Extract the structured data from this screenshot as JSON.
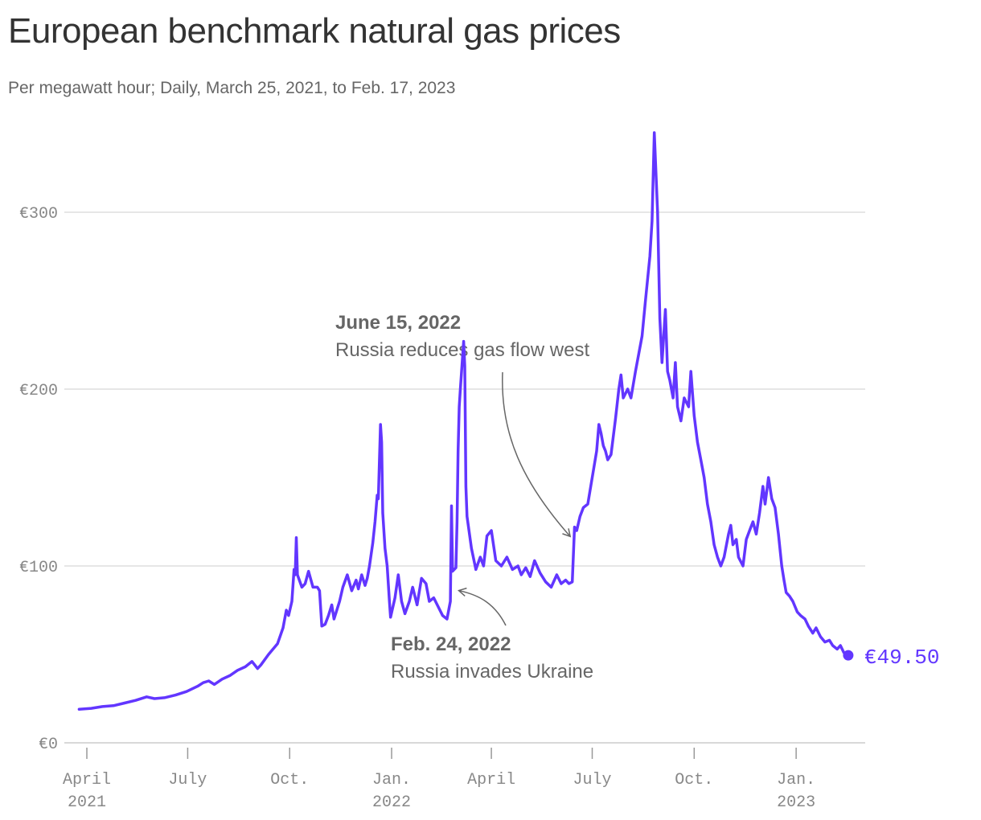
{
  "title": "European benchmark natural gas prices",
  "subtitle": "Per megawatt hour; Daily, March 25, 2021, to Feb. 17, 2023",
  "colors": {
    "series": "#6236ff",
    "grid": "#dddddd",
    "text": "#666666"
  },
  "chart_data": {
    "type": "line",
    "title": "European benchmark natural gas prices",
    "subtitle": "Per megawatt hour; Daily, March 25, 2021, to Feb. 17, 2023",
    "xlabel": "",
    "ylabel": "",
    "ylim": [
      0,
      350
    ],
    "xlim": [
      "2021-03-25",
      "2023-02-17"
    ],
    "grid": "horizontal",
    "y_ticks": [
      {
        "value": 0,
        "label": "€0"
      },
      {
        "value": 100,
        "label": "€100"
      },
      {
        "value": 200,
        "label": "€200"
      },
      {
        "value": 300,
        "label": "€300"
      }
    ],
    "x_ticks": [
      {
        "date": "2021-04-01",
        "line1": "April",
        "line2": "2021"
      },
      {
        "date": "2021-07-01",
        "line1": "July",
        "line2": ""
      },
      {
        "date": "2021-10-01",
        "line1": "Oct.",
        "line2": ""
      },
      {
        "date": "2022-01-01",
        "line1": "Jan.",
        "line2": "2022"
      },
      {
        "date": "2022-04-01",
        "line1": "April",
        "line2": ""
      },
      {
        "date": "2022-07-01",
        "line1": "July",
        "line2": ""
      },
      {
        "date": "2022-10-01",
        "line1": "Oct.",
        "line2": ""
      },
      {
        "date": "2023-01-01",
        "line1": "Jan.",
        "line2": "2023"
      }
    ],
    "series": [
      {
        "color": "#6236ff",
        "points": [
          [
            "2021-03-25",
            19
          ],
          [
            "2021-04-05",
            19.5
          ],
          [
            "2021-04-15",
            20.5
          ],
          [
            "2021-04-25",
            21
          ],
          [
            "2021-05-05",
            22.5
          ],
          [
            "2021-05-15",
            24
          ],
          [
            "2021-05-25",
            26
          ],
          [
            "2021-06-01",
            25
          ],
          [
            "2021-06-10",
            25.5
          ],
          [
            "2021-06-20",
            27
          ],
          [
            "2021-06-30",
            29
          ],
          [
            "2021-07-10",
            32
          ],
          [
            "2021-07-15",
            34
          ],
          [
            "2021-07-20",
            35
          ],
          [
            "2021-07-25",
            33
          ],
          [
            "2021-08-01",
            36
          ],
          [
            "2021-08-08",
            38
          ],
          [
            "2021-08-15",
            41
          ],
          [
            "2021-08-22",
            43
          ],
          [
            "2021-08-28",
            46
          ],
          [
            "2021-09-02",
            42
          ],
          [
            "2021-09-05",
            44
          ],
          [
            "2021-09-12",
            50
          ],
          [
            "2021-09-20",
            56
          ],
          [
            "2021-09-25",
            65
          ],
          [
            "2021-09-28",
            75
          ],
          [
            "2021-09-30",
            72
          ],
          [
            "2021-10-03",
            80
          ],
          [
            "2021-10-05",
            98
          ],
          [
            "2021-10-06",
            95
          ],
          [
            "2021-10-07",
            116
          ],
          [
            "2021-10-08",
            95
          ],
          [
            "2021-10-12",
            88
          ],
          [
            "2021-10-15",
            90
          ],
          [
            "2021-10-18",
            97
          ],
          [
            "2021-10-22",
            88
          ],
          [
            "2021-10-26",
            88
          ],
          [
            "2021-10-28",
            86
          ],
          [
            "2021-10-30",
            66
          ],
          [
            "2021-11-02",
            67
          ],
          [
            "2021-11-05",
            72
          ],
          [
            "2021-11-08",
            78
          ],
          [
            "2021-11-10",
            70
          ],
          [
            "2021-11-15",
            80
          ],
          [
            "2021-11-18",
            88
          ],
          [
            "2021-11-22",
            95
          ],
          [
            "2021-11-26",
            86
          ],
          [
            "2021-11-30",
            92
          ],
          [
            "2021-12-02",
            87
          ],
          [
            "2021-12-05",
            95
          ],
          [
            "2021-12-08",
            89
          ],
          [
            "2021-12-10",
            93
          ],
          [
            "2021-12-12",
            100
          ],
          [
            "2021-12-15",
            113
          ],
          [
            "2021-12-17",
            125
          ],
          [
            "2021-12-19",
            140
          ],
          [
            "2021-12-20",
            138
          ],
          [
            "2021-12-21",
            160
          ],
          [
            "2021-12-22",
            180
          ],
          [
            "2021-12-23",
            170
          ],
          [
            "2021-12-24",
            130
          ],
          [
            "2021-12-26",
            110
          ],
          [
            "2021-12-28",
            100
          ],
          [
            "2021-12-30",
            80
          ],
          [
            "2021-12-31",
            71
          ],
          [
            "2022-01-04",
            82
          ],
          [
            "2022-01-07",
            95
          ],
          [
            "2022-01-10",
            80
          ],
          [
            "2022-01-13",
            73
          ],
          [
            "2022-01-17",
            80
          ],
          [
            "2022-01-20",
            88
          ],
          [
            "2022-01-24",
            78
          ],
          [
            "2022-01-28",
            93
          ],
          [
            "2022-02-01",
            90
          ],
          [
            "2022-02-04",
            80
          ],
          [
            "2022-02-08",
            82
          ],
          [
            "2022-02-12",
            77
          ],
          [
            "2022-02-16",
            72
          ],
          [
            "2022-02-20",
            70
          ],
          [
            "2022-02-23",
            80
          ],
          [
            "2022-02-24",
            134
          ],
          [
            "2022-02-25",
            97
          ],
          [
            "2022-02-28",
            99
          ],
          [
            "2022-03-01",
            125
          ],
          [
            "2022-03-02",
            165
          ],
          [
            "2022-03-03",
            190
          ],
          [
            "2022-03-04",
            200
          ],
          [
            "2022-03-07",
            227
          ],
          [
            "2022-03-08",
            213
          ],
          [
            "2022-03-09",
            145
          ],
          [
            "2022-03-10",
            128
          ],
          [
            "2022-03-14",
            110
          ],
          [
            "2022-03-18",
            98
          ],
          [
            "2022-03-22",
            105
          ],
          [
            "2022-03-25",
            100
          ],
          [
            "2022-03-28",
            117
          ],
          [
            "2022-04-01",
            120
          ],
          [
            "2022-04-05",
            103
          ],
          [
            "2022-04-10",
            100
          ],
          [
            "2022-04-15",
            105
          ],
          [
            "2022-04-20",
            98
          ],
          [
            "2022-04-25",
            100
          ],
          [
            "2022-04-28",
            95
          ],
          [
            "2022-05-02",
            99
          ],
          [
            "2022-05-06",
            94
          ],
          [
            "2022-05-10",
            103
          ],
          [
            "2022-05-15",
            96
          ],
          [
            "2022-05-20",
            91
          ],
          [
            "2022-05-25",
            88
          ],
          [
            "2022-05-30",
            95
          ],
          [
            "2022-06-03",
            90
          ],
          [
            "2022-06-07",
            92
          ],
          [
            "2022-06-10",
            90
          ],
          [
            "2022-06-13",
            91
          ],
          [
            "2022-06-15",
            122
          ],
          [
            "2022-06-17",
            120
          ],
          [
            "2022-06-20",
            128
          ],
          [
            "2022-06-23",
            133
          ],
          [
            "2022-06-27",
            135
          ],
          [
            "2022-07-01",
            150
          ],
          [
            "2022-07-05",
            165
          ],
          [
            "2022-07-07",
            180
          ],
          [
            "2022-07-09",
            175
          ],
          [
            "2022-07-11",
            168
          ],
          [
            "2022-07-13",
            165
          ],
          [
            "2022-07-15",
            160
          ],
          [
            "2022-07-18",
            163
          ],
          [
            "2022-07-22",
            183
          ],
          [
            "2022-07-25",
            200
          ],
          [
            "2022-07-27",
            208
          ],
          [
            "2022-07-29",
            195
          ],
          [
            "2022-08-02",
            200
          ],
          [
            "2022-08-05",
            195
          ],
          [
            "2022-08-09",
            210
          ],
          [
            "2022-08-12",
            220
          ],
          [
            "2022-08-15",
            230
          ],
          [
            "2022-08-18",
            250
          ],
          [
            "2022-08-22",
            275
          ],
          [
            "2022-08-24",
            295
          ],
          [
            "2022-08-26",
            345
          ],
          [
            "2022-08-29",
            300
          ],
          [
            "2022-08-31",
            240
          ],
          [
            "2022-09-02",
            215
          ],
          [
            "2022-09-05",
            245
          ],
          [
            "2022-09-07",
            210
          ],
          [
            "2022-09-09",
            205
          ],
          [
            "2022-09-12",
            195
          ],
          [
            "2022-09-14",
            215
          ],
          [
            "2022-09-16",
            190
          ],
          [
            "2022-09-19",
            182
          ],
          [
            "2022-09-22",
            195
          ],
          [
            "2022-09-26",
            190
          ],
          [
            "2022-09-28",
            210
          ],
          [
            "2022-10-01",
            185
          ],
          [
            "2022-10-04",
            170
          ],
          [
            "2022-10-07",
            160
          ],
          [
            "2022-10-10",
            150
          ],
          [
            "2022-10-13",
            135
          ],
          [
            "2022-10-16",
            125
          ],
          [
            "2022-10-19",
            112
          ],
          [
            "2022-10-22",
            105
          ],
          [
            "2022-10-25",
            100
          ],
          [
            "2022-10-28",
            105
          ],
          [
            "2022-11-01",
            118
          ],
          [
            "2022-11-03",
            123
          ],
          [
            "2022-11-05",
            112
          ],
          [
            "2022-11-08",
            115
          ],
          [
            "2022-11-10",
            105
          ],
          [
            "2022-11-14",
            100
          ],
          [
            "2022-11-17",
            115
          ],
          [
            "2022-11-20",
            120
          ],
          [
            "2022-11-23",
            125
          ],
          [
            "2022-11-26",
            118
          ],
          [
            "2022-11-29",
            130
          ],
          [
            "2022-12-02",
            145
          ],
          [
            "2022-12-04",
            135
          ],
          [
            "2022-12-07",
            150
          ],
          [
            "2022-12-10",
            138
          ],
          [
            "2022-12-13",
            133
          ],
          [
            "2022-12-16",
            118
          ],
          [
            "2022-12-19",
            100
          ],
          [
            "2022-12-21",
            92
          ],
          [
            "2022-12-23",
            85
          ],
          [
            "2022-12-26",
            83
          ],
          [
            "2022-12-29",
            80
          ],
          [
            "2023-01-02",
            74
          ],
          [
            "2023-01-05",
            72
          ],
          [
            "2023-01-09",
            70
          ],
          [
            "2023-01-12",
            66
          ],
          [
            "2023-01-16",
            62
          ],
          [
            "2023-01-19",
            65
          ],
          [
            "2023-01-23",
            60
          ],
          [
            "2023-01-27",
            57
          ],
          [
            "2023-01-31",
            58
          ],
          [
            "2023-02-03",
            55
          ],
          [
            "2023-02-07",
            53
          ],
          [
            "2023-02-10",
            55
          ],
          [
            "2023-02-13",
            51
          ],
          [
            "2023-02-17",
            49.5
          ]
        ]
      }
    ],
    "end_value": {
      "date": "2023-02-17",
      "value": 49.5,
      "label": "€49.50"
    },
    "annotations": [
      {
        "date": "2022-06-15",
        "value": 122,
        "title": "June 15, 2022",
        "text": "Russia reduces gas flow west"
      },
      {
        "date": "2022-02-24",
        "value": 86,
        "title": "Feb. 24, 2022",
        "text": "Russia invades Ukraine"
      }
    ]
  }
}
